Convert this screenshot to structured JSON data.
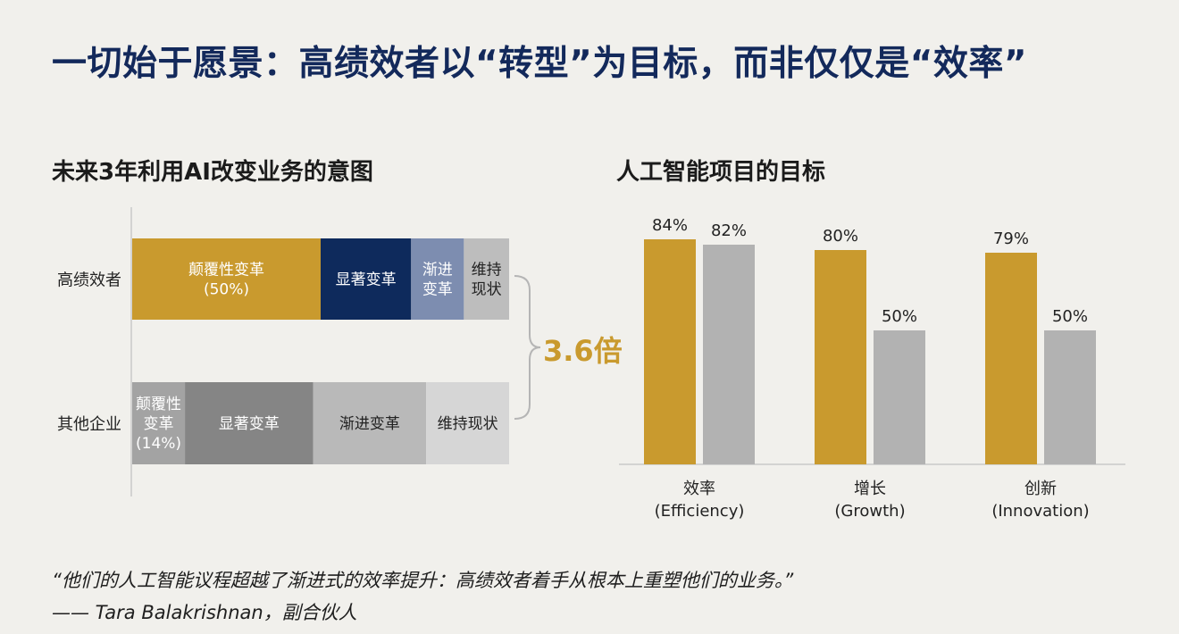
{
  "page": {
    "title": "一切始于愿景：高绩效者以“转型”为目标，而非仅仅是“效率”"
  },
  "chart_data": [
    {
      "type": "bar",
      "orientation": "horizontal-stacked",
      "title": "未来3年利用AI改变业务的意图",
      "categories": [
        "高绩效者",
        "其他企业"
      ],
      "series": [
        {
          "label_lines": [
            [
              "颠覆性变革",
              "(50%)"
            ],
            [
              "颠覆性",
              "变革",
              "(14%)"
            ]
          ],
          "values": [
            50,
            14
          ]
        },
        {
          "label_lines": [
            [
              "显著变革"
            ],
            [
              "显著变革"
            ]
          ],
          "values": [
            24,
            34
          ]
        },
        {
          "label_lines": [
            [
              "渐进",
              "变革"
            ],
            [
              "渐进变革"
            ]
          ],
          "values": [
            14,
            30
          ]
        },
        {
          "label_lines": [
            [
              "维持",
              "现状"
            ],
            [
              "维持现状"
            ]
          ],
          "values": [
            12,
            22
          ]
        }
      ],
      "colors": [
        [
          "#c99a2e",
          "#0e2a5c",
          "#7d8db0",
          "#bdbdbd"
        ],
        [
          "#a3a3a3",
          "#858585",
          "#b9b9b9",
          "#d6d6d6"
        ]
      ],
      "annotation": "3.6倍",
      "annotation_color": "#c99a2e"
    },
    {
      "type": "bar",
      "title": "人工智能项目的目标",
      "categories": [
        [
          "效率",
          "(Efficiency)"
        ],
        [
          "增长",
          "(Growth)"
        ],
        [
          "创新",
          "(Innovation)"
        ]
      ],
      "series": [
        {
          "values": [
            84,
            80,
            79
          ],
          "labels": [
            "84%",
            "80%",
            "79%"
          ],
          "color": "#c99a2e"
        },
        {
          "values": [
            82,
            50,
            50
          ],
          "labels": [
            "82%",
            "50%",
            "50%"
          ],
          "color": "#b2b2b2"
        }
      ],
      "ylim": [
        0,
        100
      ]
    }
  ],
  "quote": {
    "text": "“他们的人工智能议程超越了渐进式的效率提升：高绩效者着手从根本上重塑他们的业务。”",
    "attribution": "—— Tara Balakrishnan，副合伙人"
  }
}
